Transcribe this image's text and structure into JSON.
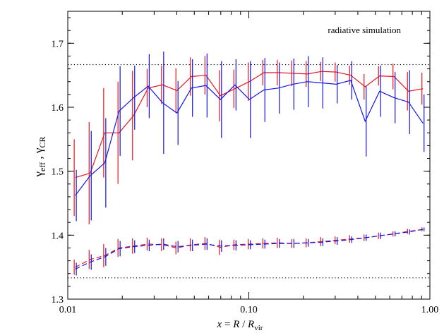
{
  "chart_data": {
    "type": "line",
    "annotation": "radiative simulation",
    "ylabel": "γeff , γCR",
    "xlabel": "x = R / Rvir",
    "x_scale": "log",
    "xlim": [
      0.01,
      1.0
    ],
    "ylim": [
      1.3,
      1.75
    ],
    "x_ticks": [
      {
        "value": 0.01,
        "label": "0.01"
      },
      {
        "value": 0.1,
        "label": "0.10"
      },
      {
        "value": 1.0,
        "label": "1.00"
      }
    ],
    "y_ticks": [
      {
        "value": 1.3,
        "label": "1.3"
      },
      {
        "value": 1.4,
        "label": "1.4"
      },
      {
        "value": 1.5,
        "label": "1.5"
      },
      {
        "value": 1.6,
        "label": "1.6"
      },
      {
        "value": 1.7,
        "label": "1.7"
      }
    ],
    "reference_lines": [
      1.6667,
      1.3333
    ],
    "colors": {
      "red": "#e8141e",
      "blue": "#1414e8",
      "axes": "#000000",
      "reference": "#000000"
    },
    "series": [
      {
        "color": "red",
        "style": "solid",
        "x": [
          0.011,
          0.0133,
          0.016,
          0.0192,
          0.0231,
          0.0278,
          0.0334,
          0.0401,
          0.0482,
          0.058,
          0.0697,
          0.0838,
          0.1007,
          0.121,
          0.1455,
          0.1749,
          0.2102,
          0.2527,
          0.3037,
          0.3651,
          0.4389,
          0.5275,
          0.634,
          0.7621,
          0.916
        ],
        "y": [
          1.49,
          1.497,
          1.56,
          1.56,
          1.587,
          1.63,
          1.635,
          1.626,
          1.648,
          1.65,
          1.618,
          1.629,
          1.64,
          1.654,
          1.654,
          1.653,
          1.652,
          1.656,
          1.655,
          1.65,
          1.632,
          1.649,
          1.648,
          1.625,
          1.629
        ],
        "err": [
          0.06,
          0.08,
          0.07,
          0.08,
          0.07,
          0.03,
          0.03,
          0.035,
          0.03,
          0.03,
          0.04,
          0.03,
          0.03,
          0.02,
          0.02,
          0.02,
          0.02,
          0.015,
          0.015,
          0.015,
          0.02,
          0.015,
          0.02,
          0.03,
          0.025
        ]
      },
      {
        "color": "blue",
        "style": "solid",
        "x": [
          0.011,
          0.0133,
          0.016,
          0.0192,
          0.0231,
          0.0278,
          0.0334,
          0.0401,
          0.0482,
          0.058,
          0.0697,
          0.0838,
          0.1007,
          0.121,
          0.1455,
          0.1749,
          0.2102,
          0.2527,
          0.3037,
          0.3651,
          0.4389,
          0.5275,
          0.634,
          0.7621,
          0.916
        ],
        "y": [
          1.462,
          1.493,
          1.513,
          1.594,
          1.615,
          1.633,
          1.607,
          1.591,
          1.63,
          1.634,
          1.612,
          1.635,
          1.612,
          1.627,
          1.63,
          1.636,
          1.64,
          1.638,
          1.636,
          1.642,
          1.578,
          1.625,
          1.615,
          1.608,
          1.575
        ],
        "err": [
          0.04,
          0.07,
          0.07,
          0.07,
          0.05,
          0.05,
          0.08,
          0.05,
          0.045,
          0.05,
          0.06,
          0.04,
          0.06,
          0.05,
          0.04,
          0.04,
          0.04,
          0.04,
          0.03,
          0.03,
          0.055,
          0.04,
          0.04,
          0.05,
          0.045
        ]
      },
      {
        "color": "red",
        "style": "dashed",
        "x": [
          0.011,
          0.0133,
          0.016,
          0.0192,
          0.0231,
          0.0278,
          0.0334,
          0.0401,
          0.0482,
          0.058,
          0.0697,
          0.0838,
          0.1007,
          0.121,
          0.1455,
          0.1749,
          0.2102,
          0.2527,
          0.3037,
          0.3651,
          0.4389,
          0.5275,
          0.634,
          0.7621,
          0.916
        ],
        "y": [
          1.35,
          1.362,
          1.368,
          1.38,
          1.383,
          1.386,
          1.385,
          1.38,
          1.385,
          1.387,
          1.381,
          1.385,
          1.386,
          1.387,
          1.388,
          1.387,
          1.388,
          1.39,
          1.392,
          1.394,
          1.396,
          1.399,
          1.402,
          1.406,
          1.409
        ],
        "err": [
          0.012,
          0.015,
          0.018,
          0.014,
          0.012,
          0.01,
          0.01,
          0.01,
          0.01,
          0.01,
          0.012,
          0.008,
          0.008,
          0.008,
          0.008,
          0.007,
          0.007,
          0.007,
          0.006,
          0.006,
          0.005,
          0.005,
          0.004,
          0.004,
          0.003
        ]
      },
      {
        "color": "blue",
        "style": "dashed",
        "x": [
          0.011,
          0.0133,
          0.016,
          0.0192,
          0.0231,
          0.0278,
          0.0334,
          0.0401,
          0.0482,
          0.058,
          0.0697,
          0.0838,
          0.1007,
          0.121,
          0.1455,
          0.1749,
          0.2102,
          0.2527,
          0.3037,
          0.3651,
          0.4389,
          0.5275,
          0.634,
          0.7621,
          0.916
        ],
        "y": [
          1.347,
          1.358,
          1.366,
          1.379,
          1.382,
          1.384,
          1.386,
          1.382,
          1.384,
          1.386,
          1.383,
          1.384,
          1.385,
          1.386,
          1.387,
          1.387,
          1.388,
          1.389,
          1.391,
          1.393,
          1.396,
          1.399,
          1.402,
          1.405,
          1.409
        ],
        "err": [
          0.01,
          0.012,
          0.014,
          0.012,
          0.01,
          0.009,
          0.009,
          0.009,
          0.009,
          0.009,
          0.009,
          0.008,
          0.007,
          0.007,
          0.007,
          0.007,
          0.006,
          0.006,
          0.006,
          0.005,
          0.005,
          0.005,
          0.004,
          0.004,
          0.003
        ]
      }
    ]
  }
}
